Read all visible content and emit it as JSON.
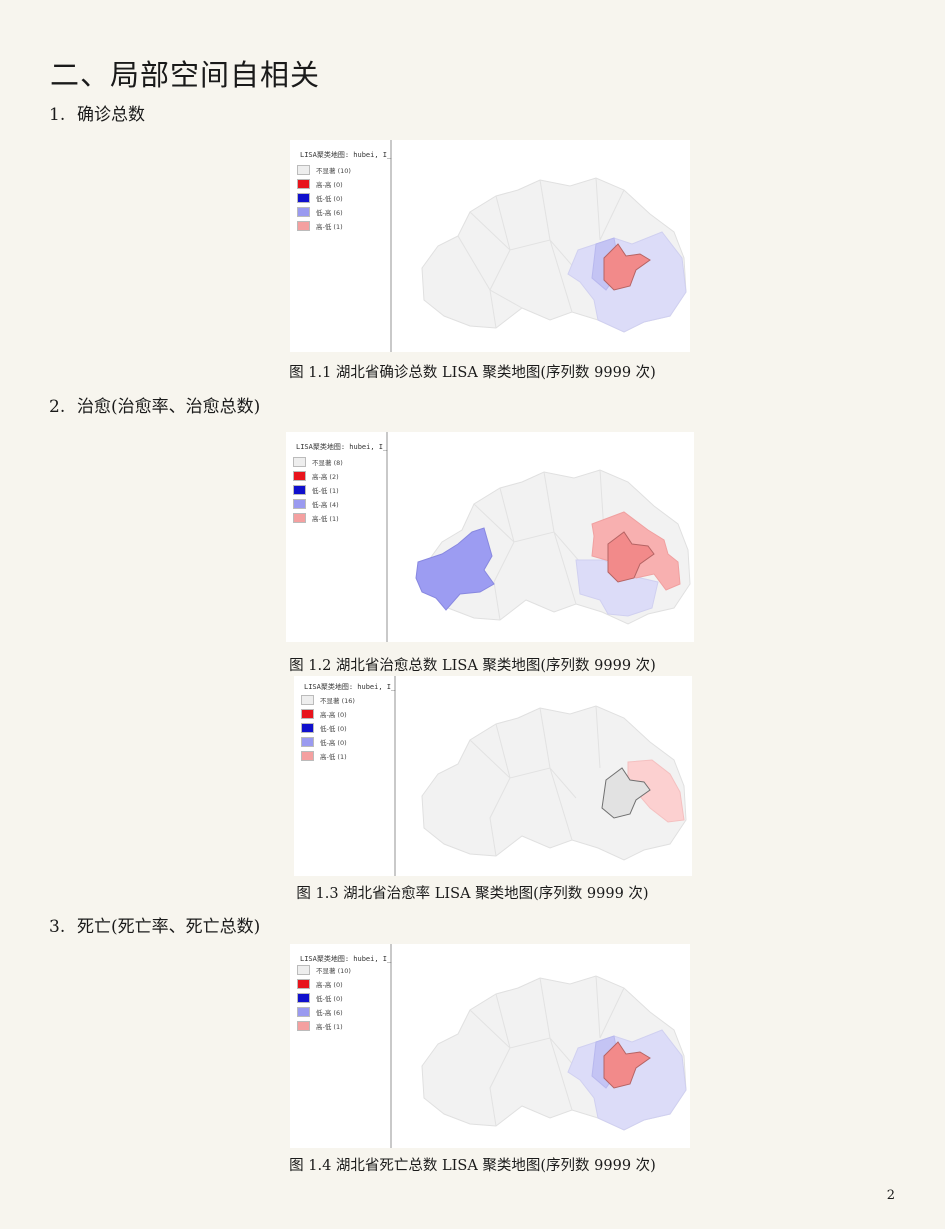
{
  "heading": "二、局部空间自相关",
  "sections": [
    {
      "num": "1.",
      "label": "确诊总数"
    },
    {
      "num": "2.",
      "label": "治愈(治愈率、治愈总数)"
    },
    {
      "num": "3.",
      "label": "死亡(死亡率、死亡总数)"
    }
  ],
  "colors": {
    "not_significant": "#eeeeee",
    "high_high": "#e8141c",
    "low_low": "#1010cc",
    "low_high": "#9a9af0",
    "high_low": "#f4a0a0"
  },
  "figures": [
    {
      "caption": "图 1.1 湖北省确诊总数 LISA 聚类地图(序列数 9999 次)",
      "legend_title": "LISA聚类地图: hubei, I_",
      "legend": [
        "不显著 (10)",
        "高-高 (0)",
        "低-低 (0)",
        "低-高 (6)",
        "高-低 (1)"
      ]
    },
    {
      "caption": "图 1.2 湖北省治愈总数 LISA 聚类地图(序列数 9999 次)",
      "legend_title": "LISA聚类地图: hubei, I_",
      "legend": [
        "不显著 (8)",
        "高-高 (2)",
        "低-低 (1)",
        "低-高 (4)",
        "高-低 (1)"
      ]
    },
    {
      "caption": "图 1.3 湖北省治愈率 LISA 聚类地图(序列数 9999 次)",
      "legend_title": "LISA聚类地图: hubei, I_",
      "legend": [
        "不显著 (16)",
        "高-高 (0)",
        "低-低 (0)",
        "低-高 (0)",
        "高-低 (1)"
      ]
    },
    {
      "caption": "图 1.4 湖北省死亡总数 LISA 聚类地图(序列数 9999 次)",
      "legend_title": "LISA聚类地图: hubei, I_",
      "legend": [
        "不显著 (10)",
        "高-高 (0)",
        "低-低 (0)",
        "低-高 (6)",
        "高-低 (1)"
      ]
    }
  ],
  "page_number": "2"
}
